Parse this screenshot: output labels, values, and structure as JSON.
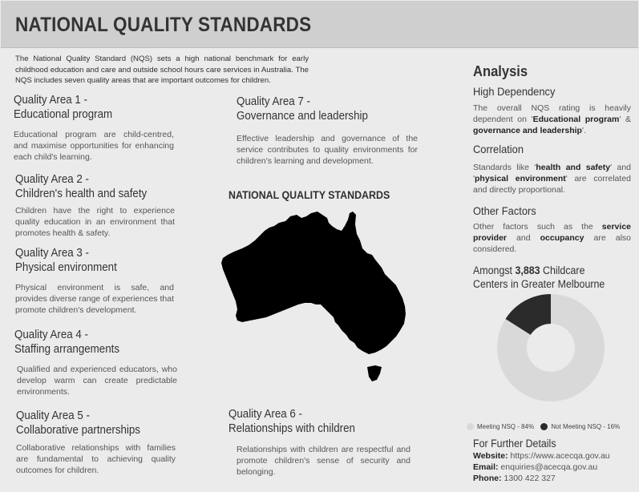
{
  "header": {
    "title": "NATIONAL QUALITY STANDARDS"
  },
  "intro": "The National Quality Standard (NQS) sets a high national benchmark for early childhood education and care and outside school hours care services in Australia. The NQS includes seven quality areas that are important outcomes for children.",
  "quality_areas": [
    {
      "title": "Quality Area 1 -",
      "subtitle": "Educational program",
      "description": "Educational program are child-centred, and maximise opportunities for enhancing each child's learning."
    },
    {
      "title": "Quality Area 2 -",
      "subtitle": "Children's health and safety",
      "description": "Children have the right to experience quality education in an environment that promotes health & safety."
    },
    {
      "title": "Quality Area 3 -",
      "subtitle": "Physical environment",
      "description": "Physical environment is safe, and provides diverse range of experiences that promote children's development."
    },
    {
      "title": "Quality Area 4 -",
      "subtitle": "Staffing arrangements",
      "description": "Qualified and experienced educators, who develop warm can create predictable environments."
    },
    {
      "title": "Quality Area 5 -",
      "subtitle": "Collaborative partnerships",
      "description": "Collaborative relationships with families are fundamental to achieving quality outcomes for children."
    },
    {
      "title": "Quality Area 6 -",
      "subtitle": "Relationships with children",
      "description": "Relationships with children are respectful and promote children's sense of security and belonging."
    },
    {
      "title": "Quality Area 7 -",
      "subtitle": "Governance and leadership",
      "description": "Effective leadership and governance of the service contributes to quality environments for children's learning and development."
    }
  ],
  "map": {
    "title": "NATIONAL QUALITY STANDARDS"
  },
  "analysis": {
    "title": "Analysis",
    "high_dependency": {
      "heading": "High Dependency",
      "text_1": "The overall NQS rating is heavily dependent on '",
      "bold_1": "Educational program",
      "text_2": "' & ",
      "bold_2": "governance and leadership",
      "text_3": "'."
    },
    "correlation": {
      "heading": "Correlation",
      "text_1": "Standards like '",
      "bold_1": "health and safety",
      "text_2": "' and '",
      "bold_2": "physical environment",
      "text_3": "' are correlated and directly proportional."
    },
    "other_factors": {
      "heading": "Other Factors",
      "text_1": "Other factors such as the ",
      "bold_1": "service provider",
      "text_2": " and ",
      "bold_2": "occupancy",
      "text_3": " are also considered."
    },
    "amongst": {
      "prefix": "Amongst ",
      "count": "3,883",
      "suffix": " Childcare Centers in Greater Melbourne"
    }
  },
  "chart_data": {
    "type": "pie",
    "donut": true,
    "series": [
      {
        "name": "Meeting NSQ - 84%",
        "value": 84,
        "color": "#d9d9d9"
      },
      {
        "name": "Not Meeting NSQ - 16%",
        "value": 16,
        "color": "#2b2b2b"
      }
    ],
    "legend": "bottom"
  },
  "further": {
    "heading": "For Further Details",
    "website_label": "Website:",
    "website_value": " https://www.acecqa.gov.au",
    "email_label": "Email:",
    "email_value": " enquiries@acecqa.gov.au",
    "phone_label": "Phone:",
    "phone_value": " 1300 422 327"
  },
  "colors": {
    "header_bg": "#cfcfcf",
    "page_bg": "#ebebeb",
    "dark": "#2b2b2b",
    "light": "#d9d9d9"
  }
}
